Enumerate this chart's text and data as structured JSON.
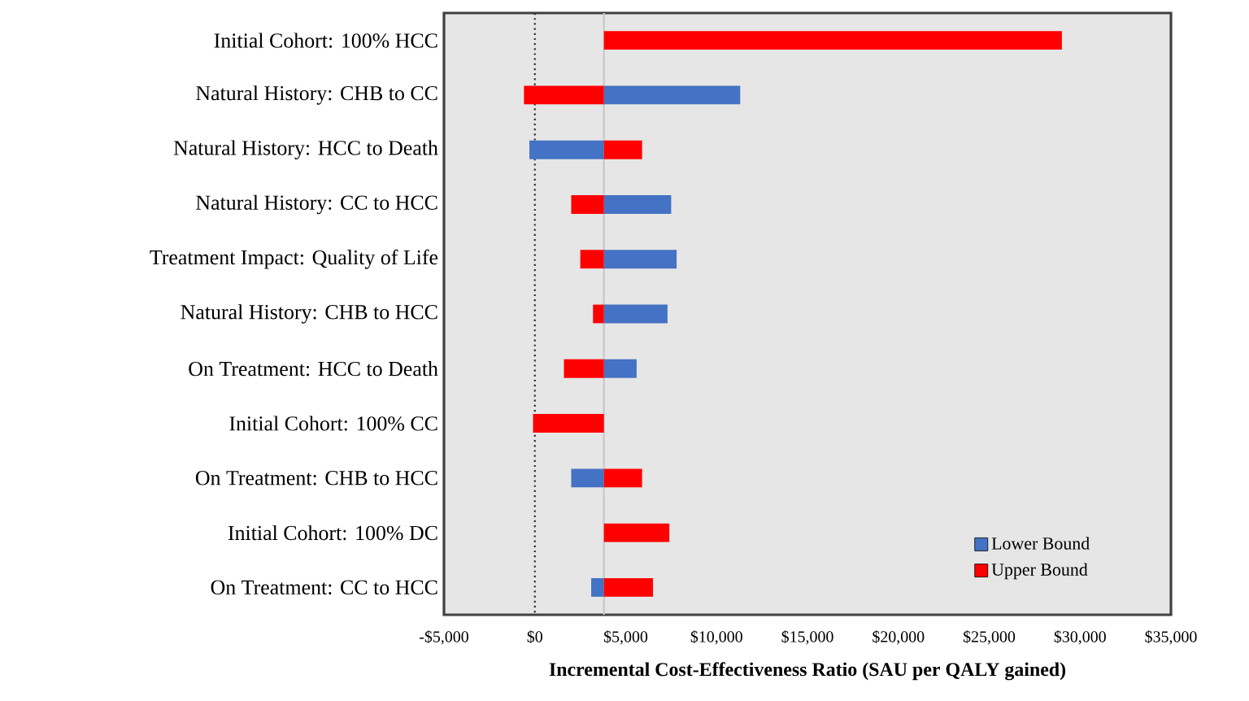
{
  "chart_data": {
    "type": "bar",
    "orientation": "horizontal",
    "xlabel": "Incremental Cost-Effectiveness Ratio (SAU per QALY gained)",
    "categories": [
      "Initial Cohort: 100% HCC",
      "Natural History: CHB to CC",
      "Natural History: HCC to Death",
      "Natural History: CC to HCC",
      "Treatment Impact: Quality of Life",
      "Natural History: CHB to HCC",
      "On Treatment: HCC to Death",
      "Initial Cohort: 100% CC",
      "On Treatment: CHB to HCC",
      "Initial Cohort: 100% DC",
      "On Treatment: CC to HCC"
    ],
    "series": [
      {
        "name": "Lower Bound",
        "color": "#4472c4",
        "base": [
          null,
          3800,
          -300,
          3800,
          3800,
          3800,
          3800,
          null,
          2000,
          null,
          3100
        ],
        "values": [
          null,
          7500,
          4100,
          3700,
          4000,
          3500,
          1800,
          null,
          1800,
          null,
          700
        ]
      },
      {
        "name": "Upper Bound",
        "color": "#ff0000",
        "base": [
          3800,
          -600,
          3800,
          2000,
          2500,
          3200,
          1600,
          -100,
          3800,
          3800,
          3800
        ],
        "values": [
          25200,
          4400,
          2100,
          1800,
          1300,
          600,
          2200,
          3900,
          2100,
          3600,
          2700
        ]
      }
    ],
    "xlim": [
      -5000,
      35000
    ],
    "xticks": [
      {
        "value": -5000,
        "label": "-$5,000"
      },
      {
        "value": 0,
        "label": "$0"
      },
      {
        "value": 5000,
        "label": "$5,000"
      },
      {
        "value": 10000,
        "label": "$10,000"
      },
      {
        "value": 15000,
        "label": "$15,000"
      },
      {
        "value": 20000,
        "label": "$20,000"
      },
      {
        "value": 25000,
        "label": "$25,000"
      },
      {
        "value": 30000,
        "label": "$30,000"
      },
      {
        "value": 35000,
        "label": "$35,000"
      }
    ],
    "ref_lines": [
      {
        "axis": "x",
        "value": 0,
        "color": "#303030",
        "line_style": "dotted"
      },
      {
        "axis": "x",
        "value": 3800,
        "color": "#c8c8c8",
        "line_style": "solid"
      }
    ],
    "grid": false,
    "legend": "bottom right"
  }
}
